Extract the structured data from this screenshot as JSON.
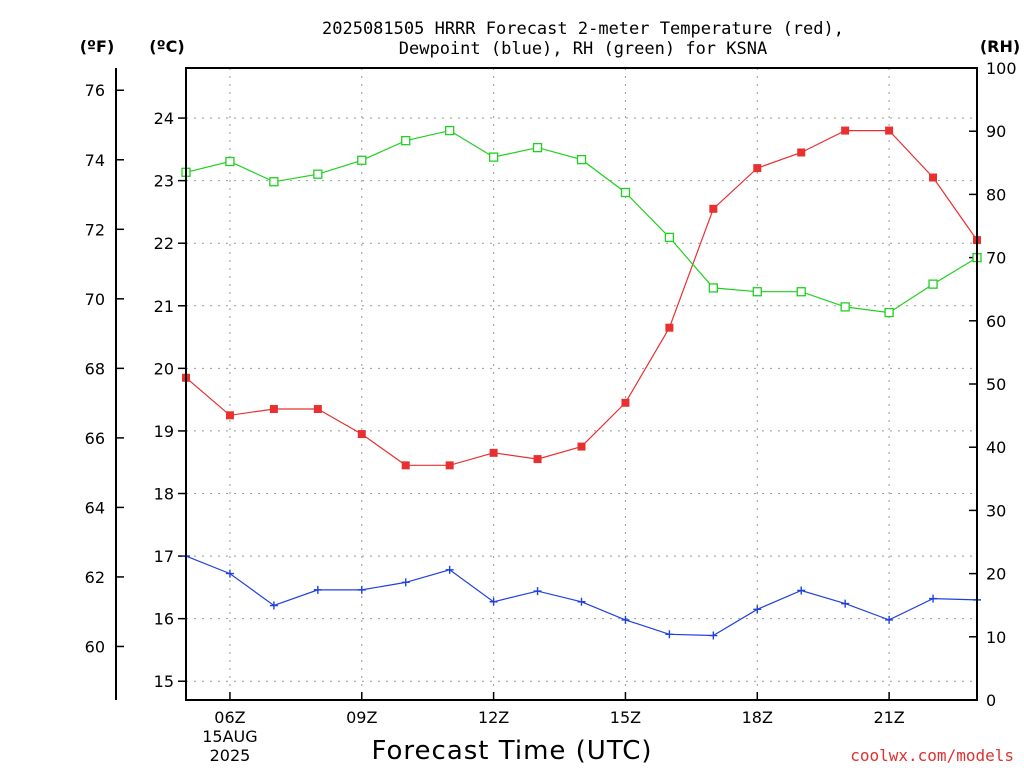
{
  "chart_data": {
    "type": "line",
    "title_line1": "2025081505 HRRR Forecast 2-meter Temperature (red),",
    "title_line2": "Dewpoint (blue), RH (green) for KSNA",
    "xlabel": "Forecast Time (UTC)",
    "credit": "coolwx.com/models",
    "units": {
      "fahrenheit": "(ºF)",
      "celsius": "(ºC)",
      "rh": "(RH)"
    },
    "x_hours": [
      5,
      6,
      7,
      8,
      9,
      10,
      11,
      12,
      13,
      14,
      15,
      16,
      17,
      18,
      19,
      20,
      21,
      22,
      23
    ],
    "x_ticks": [
      {
        "hour": 6,
        "label": "06Z",
        "sub1": "15AUG",
        "sub2": "2025"
      },
      {
        "hour": 9,
        "label": "09Z"
      },
      {
        "hour": 12,
        "label": "12Z"
      },
      {
        "hour": 15,
        "label": "15Z"
      },
      {
        "hour": 18,
        "label": "18Z"
      },
      {
        "hour": 21,
        "label": "21Z"
      }
    ],
    "xlim": [
      5,
      23
    ],
    "celsius_ticks": [
      "15",
      "16",
      "17",
      "18",
      "19",
      "20",
      "21",
      "22",
      "23",
      "24"
    ],
    "fahrenheit_ticks": [
      "60",
      "62",
      "64",
      "66",
      "68",
      "70",
      "72",
      "74",
      "76"
    ],
    "rh_ticks": [
      "0",
      "10",
      "20",
      "30",
      "40",
      "50",
      "60",
      "70",
      "80",
      "90",
      "100"
    ],
    "ylim_celsius": [
      14.7,
      24.8
    ],
    "ylim_rh": [
      0,
      100
    ],
    "series": [
      {
        "key": "temperature",
        "color": "#e83030",
        "axis": "celsius",
        "values": [
          19.85,
          19.25,
          19.35,
          19.35,
          18.95,
          18.45,
          18.45,
          18.65,
          18.55,
          18.75,
          19.45,
          20.65,
          22.55,
          23.2,
          23.45,
          23.8,
          23.8,
          23.05,
          22.05
        ]
      },
      {
        "key": "dewpoint",
        "color": "#2040e0",
        "axis": "celsius",
        "values": [
          17.0,
          16.72,
          16.21,
          16.46,
          16.46,
          16.58,
          16.78,
          16.27,
          16.44,
          16.27,
          15.98,
          15.75,
          15.73,
          16.15,
          16.45,
          16.24,
          15.98,
          16.32,
          16.3
        ]
      },
      {
        "key": "rh",
        "color": "#20d020",
        "axis": "rh",
        "values": [
          83.5,
          85.2,
          82.0,
          83.2,
          85.4,
          88.5,
          90.1,
          85.9,
          87.4,
          85.5,
          80.3,
          73.2,
          65.2,
          64.6,
          64.6,
          62.2,
          61.3,
          65.8,
          70.0
        ]
      }
    ]
  }
}
